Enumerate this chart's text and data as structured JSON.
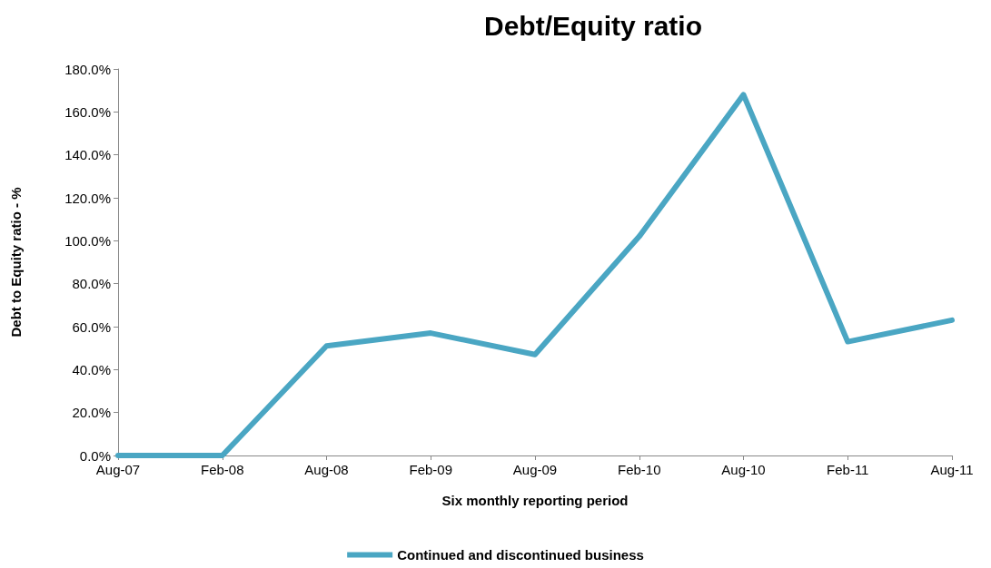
{
  "chart_data": {
    "type": "line",
    "title": "Debt/Equity ratio",
    "xlabel": "Six monthly reporting period",
    "ylabel": "Debt to Equity ratio - %",
    "categories": [
      "Aug-07",
      "Feb-08",
      "Aug-08",
      "Feb-09",
      "Aug-09",
      "Feb-10",
      "Aug-10",
      "Feb-11",
      "Aug-11"
    ],
    "series": [
      {
        "name": "Continued and discontinued business",
        "color": "#4aa6c3",
        "values": [
          0,
          0,
          51,
          57,
          47,
          102,
          168,
          53,
          63
        ]
      }
    ],
    "ylim": [
      0,
      180
    ],
    "yticks": [
      {
        "value": 0,
        "label": "0.0%"
      },
      {
        "value": 20,
        "label": "20.0%"
      },
      {
        "value": 40,
        "label": "40.0%"
      },
      {
        "value": 60,
        "label": "60.0%"
      },
      {
        "value": 80,
        "label": "80.0%"
      },
      {
        "value": 100,
        "label": "100.0%"
      },
      {
        "value": 120,
        "label": "120.0%"
      },
      {
        "value": 140,
        "label": "140.0%"
      },
      {
        "value": 160,
        "label": "160.0%"
      },
      {
        "value": 180,
        "label": "180.0%"
      }
    ],
    "grid": false,
    "legend": "bottom",
    "marker": "none",
    "line_style": "solid"
  }
}
